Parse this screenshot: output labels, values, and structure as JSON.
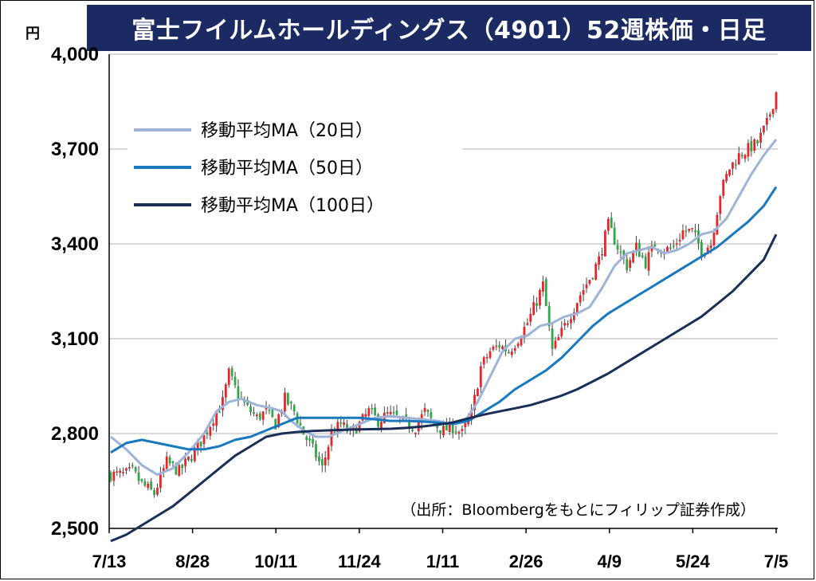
{
  "chart_data": {
    "type": "candlestick",
    "title": "富士フイルムホールディングス（4901）52週株価・日足",
    "unit": "円",
    "source": "（出所：Bloombergをもとにフィリップ証券作成）",
    "ylim": [
      2500,
      4000
    ],
    "y_ticks": [
      2500,
      2800,
      3100,
      3400,
      3700,
      4000
    ],
    "y_tick_labels": [
      "2,500",
      "2,800",
      "3,100",
      "3,400",
      "3,700",
      "4,000"
    ],
    "x_tick_labels": [
      "7/13",
      "8/28",
      "10/11",
      "11/24",
      "1/11",
      "2/26",
      "4/9",
      "5/24",
      "7/5"
    ],
    "grid": true,
    "up_color": "#e8262a",
    "down_color": "#2ea84a",
    "legend_position": "top-left",
    "anchors": [
      [
        0,
        2670
      ],
      [
        4,
        2670
      ],
      [
        7,
        2680
      ],
      [
        10,
        2640
      ],
      [
        14,
        2610
      ],
      [
        18,
        2710
      ],
      [
        22,
        2680
      ],
      [
        26,
        2730
      ],
      [
        30,
        2790
      ],
      [
        33,
        2850
      ],
      [
        36,
        2900
      ],
      [
        38,
        2990
      ],
      [
        41,
        2920
      ],
      [
        44,
        2880
      ],
      [
        47,
        2850
      ],
      [
        50,
        2870
      ],
      [
        53,
        2830
      ],
      [
        56,
        2910
      ],
      [
        59,
        2870
      ],
      [
        62,
        2800
      ],
      [
        65,
        2750
      ],
      [
        68,
        2690
      ],
      [
        71,
        2800
      ],
      [
        74,
        2830
      ],
      [
        77,
        2800
      ],
      [
        80,
        2830
      ],
      [
        83,
        2870
      ],
      [
        86,
        2840
      ],
      [
        89,
        2860
      ],
      [
        92,
        2850
      ],
      [
        95,
        2830
      ],
      [
        98,
        2820
      ],
      [
        101,
        2870
      ],
      [
        104,
        2830
      ],
      [
        107,
        2810
      ],
      [
        110,
        2820
      ],
      [
        113,
        2800
      ],
      [
        116,
        2860
      ],
      [
        119,
        3010
      ],
      [
        122,
        3060
      ],
      [
        125,
        3080
      ],
      [
        128,
        3060
      ],
      [
        131,
        3100
      ],
      [
        134,
        3150
      ],
      [
        137,
        3220
      ],
      [
        139,
        3270
      ],
      [
        142,
        3060
      ],
      [
        145,
        3120
      ],
      [
        148,
        3180
      ],
      [
        151,
        3240
      ],
      [
        154,
        3290
      ],
      [
        157,
        3350
      ],
      [
        160,
        3460
      ],
      [
        163,
        3390
      ],
      [
        166,
        3330
      ],
      [
        169,
        3390
      ],
      [
        172,
        3340
      ],
      [
        175,
        3400
      ],
      [
        178,
        3380
      ],
      [
        181,
        3390
      ],
      [
        184,
        3440
      ],
      [
        187,
        3440
      ],
      [
        190,
        3380
      ],
      [
        193,
        3400
      ],
      [
        196,
        3560
      ],
      [
        199,
        3640
      ],
      [
        202,
        3680
      ],
      [
        205,
        3700
      ],
      [
        208,
        3720
      ],
      [
        211,
        3780
      ],
      [
        214,
        3880
      ]
    ],
    "n_days": 215,
    "series": [
      {
        "name": "移動平均MA（20日）",
        "color": "#9db3d8",
        "width": 3,
        "points": [
          [
            0,
            2790
          ],
          [
            5,
            2750
          ],
          [
            10,
            2700
          ],
          [
            15,
            2670
          ],
          [
            20,
            2690
          ],
          [
            25,
            2740
          ],
          [
            30,
            2800
          ],
          [
            34,
            2870
          ],
          [
            38,
            2900
          ],
          [
            42,
            2910
          ],
          [
            47,
            2890
          ],
          [
            52,
            2880
          ],
          [
            55,
            2870
          ],
          [
            58,
            2840
          ],
          [
            62,
            2810
          ],
          [
            66,
            2790
          ],
          [
            70,
            2790
          ],
          [
            75,
            2810
          ],
          [
            80,
            2830
          ],
          [
            85,
            2850
          ],
          [
            90,
            2855
          ],
          [
            95,
            2850
          ],
          [
            100,
            2845
          ],
          [
            105,
            2840
          ],
          [
            110,
            2830
          ],
          [
            114,
            2840
          ],
          [
            118,
            2900
          ],
          [
            122,
            2980
          ],
          [
            126,
            3060
          ],
          [
            130,
            3100
          ],
          [
            134,
            3110
          ],
          [
            138,
            3140
          ],
          [
            142,
            3150
          ],
          [
            146,
            3170
          ],
          [
            150,
            3180
          ],
          [
            154,
            3200
          ],
          [
            158,
            3260
          ],
          [
            162,
            3330
          ],
          [
            166,
            3370
          ],
          [
            170,
            3380
          ],
          [
            174,
            3390
          ],
          [
            178,
            3370
          ],
          [
            182,
            3380
          ],
          [
            186,
            3400
          ],
          [
            190,
            3430
          ],
          [
            194,
            3440
          ],
          [
            198,
            3480
          ],
          [
            202,
            3550
          ],
          [
            206,
            3620
          ],
          [
            210,
            3680
          ],
          [
            214,
            3730
          ]
        ]
      },
      {
        "name": "移動平均MA（50日）",
        "color": "#1979bf",
        "width": 3,
        "points": [
          [
            0,
            2740
          ],
          [
            5,
            2770
          ],
          [
            10,
            2780
          ],
          [
            15,
            2770
          ],
          [
            20,
            2760
          ],
          [
            25,
            2750
          ],
          [
            30,
            2750
          ],
          [
            35,
            2760
          ],
          [
            40,
            2780
          ],
          [
            45,
            2790
          ],
          [
            50,
            2810
          ],
          [
            55,
            2830
          ],
          [
            60,
            2850
          ],
          [
            65,
            2850
          ],
          [
            70,
            2850
          ],
          [
            75,
            2850
          ],
          [
            80,
            2850
          ],
          [
            85,
            2845
          ],
          [
            90,
            2840
          ],
          [
            95,
            2840
          ],
          [
            100,
            2838
          ],
          [
            105,
            2835
          ],
          [
            110,
            2830
          ],
          [
            115,
            2840
          ],
          [
            120,
            2870
          ],
          [
            125,
            2900
          ],
          [
            130,
            2940
          ],
          [
            135,
            2970
          ],
          [
            140,
            3000
          ],
          [
            145,
            3040
          ],
          [
            150,
            3090
          ],
          [
            155,
            3140
          ],
          [
            160,
            3180
          ],
          [
            165,
            3210
          ],
          [
            170,
            3240
          ],
          [
            175,
            3270
          ],
          [
            180,
            3300
          ],
          [
            185,
            3330
          ],
          [
            190,
            3360
          ],
          [
            195,
            3390
          ],
          [
            200,
            3430
          ],
          [
            205,
            3470
          ],
          [
            210,
            3520
          ],
          [
            214,
            3580
          ]
        ]
      },
      {
        "name": "移動平均MA（100日）",
        "color": "#1b2e57",
        "width": 3,
        "points": [
          [
            0,
            2460
          ],
          [
            5,
            2480
          ],
          [
            10,
            2510
          ],
          [
            15,
            2540
          ],
          [
            20,
            2570
          ],
          [
            25,
            2610
          ],
          [
            30,
            2650
          ],
          [
            35,
            2690
          ],
          [
            40,
            2730
          ],
          [
            45,
            2760
          ],
          [
            50,
            2790
          ],
          [
            55,
            2800
          ],
          [
            60,
            2805
          ],
          [
            65,
            2808
          ],
          [
            70,
            2810
          ],
          [
            75,
            2812
          ],
          [
            80,
            2813
          ],
          [
            85,
            2814
          ],
          [
            90,
            2815
          ],
          [
            95,
            2818
          ],
          [
            100,
            2822
          ],
          [
            105,
            2828
          ],
          [
            110,
            2835
          ],
          [
            115,
            2848
          ],
          [
            120,
            2860
          ],
          [
            125,
            2870
          ],
          [
            130,
            2880
          ],
          [
            135,
            2890
          ],
          [
            140,
            2905
          ],
          [
            145,
            2920
          ],
          [
            150,
            2940
          ],
          [
            155,
            2965
          ],
          [
            160,
            2990
          ],
          [
            165,
            3020
          ],
          [
            170,
            3050
          ],
          [
            175,
            3080
          ],
          [
            180,
            3110
          ],
          [
            185,
            3140
          ],
          [
            190,
            3170
          ],
          [
            195,
            3210
          ],
          [
            200,
            3250
          ],
          [
            205,
            3300
          ],
          [
            210,
            3350
          ],
          [
            214,
            3430
          ]
        ]
      }
    ]
  },
  "colors": {
    "title_background": "#1b2a63",
    "title_text": "#ffffff",
    "grid": "#cccccc"
  }
}
